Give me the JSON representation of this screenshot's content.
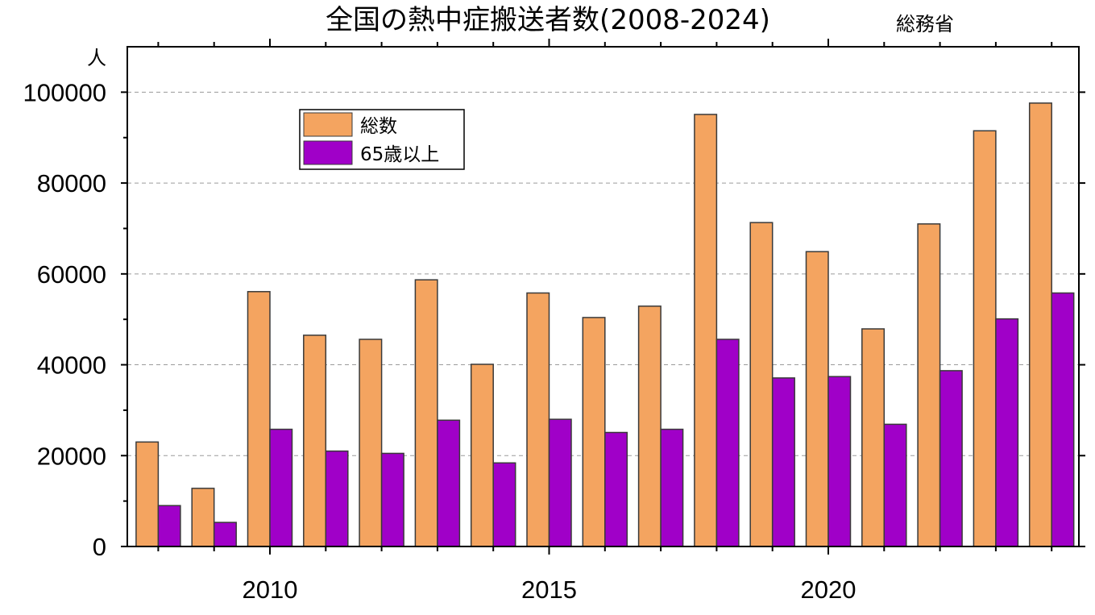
{
  "chart_data": {
    "type": "bar",
    "title": "全国の熱中症搬送者数(2008-2024)",
    "source": "総務省",
    "ylabel": "人",
    "xlabel": "",
    "ylim": [
      0,
      110000
    ],
    "yticks": [
      0,
      20000,
      40000,
      60000,
      80000,
      100000
    ],
    "ytick_labels": [
      "0",
      "20000",
      "40000",
      "60000",
      "80000",
      "100000"
    ],
    "xticks": [
      2010,
      2015,
      2020
    ],
    "xtick_labels": [
      "2010",
      "2015",
      "2020"
    ],
    "categories": [
      2008,
      2009,
      2010,
      2011,
      2012,
      2013,
      2014,
      2015,
      2016,
      2017,
      2018,
      2019,
      2020,
      2021,
      2022,
      2023,
      2024
    ],
    "grid": "horizontal dashed",
    "legend_position": "top-left",
    "series": [
      {
        "name": "総数",
        "color": "#F4A460",
        "values": [
          23000,
          12800,
          56100,
          46500,
          45600,
          58700,
          40100,
          55800,
          50400,
          52900,
          95100,
          71300,
          64900,
          47900,
          71000,
          91500,
          97600
        ]
      },
      {
        "name": "65歳以上",
        "color": "#A000C8",
        "values": [
          9000,
          5300,
          25800,
          21000,
          20500,
          27800,
          18400,
          28000,
          25100,
          25800,
          45600,
          37100,
          37400,
          26900,
          38700,
          50100,
          55800
        ]
      }
    ]
  }
}
